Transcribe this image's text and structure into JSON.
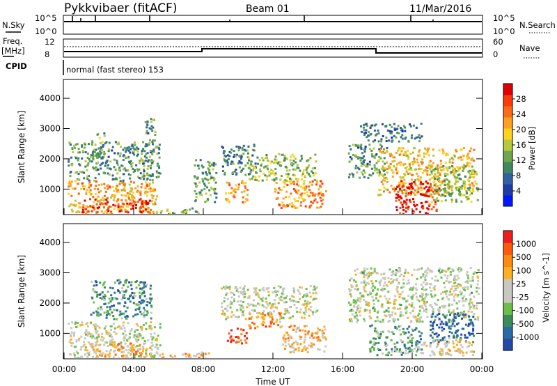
{
  "header": {
    "station": "Pykkvibaer (fitACF)",
    "beam": "Beam 01",
    "date": "11/Mar/2016"
  },
  "top_panels": {
    "nsky_label": "N.Sky",
    "nsky_ticks": [
      "10^5",
      "10^0"
    ],
    "nsearch_ticks": [
      "10^5",
      "10^0"
    ],
    "nsearch_label": "N.Search",
    "freq_label_1": "Freq.",
    "freq_label_2": "[MHz]",
    "freq_ticks": [
      "12",
      "8"
    ],
    "nave_ticks": [
      "60",
      "0"
    ],
    "nave_label": "Nave",
    "cpid_label": "CPID",
    "cpid_text": "normal (fast stereo) 153"
  },
  "chart_data": [
    {
      "type": "heatmap",
      "name": "power",
      "ylabel": "Slant Range [km]",
      "y_ticks": [
        1000,
        2000,
        3000,
        4000
      ],
      "ylim": [
        180,
        4600
      ],
      "x_ticks": [
        "00:00",
        "04:00",
        "08:00",
        "12:00",
        "16:00",
        "20:00",
        "00:00"
      ],
      "xlim_hours": [
        0,
        24
      ],
      "colorbar_label": "Power [dB]",
      "colorbar_ticks": [
        "4",
        "8",
        "12",
        "16",
        "20",
        "24",
        "28"
      ],
      "colorbar_colors": [
        "#0018ff",
        "#1e3ca8",
        "#2f62a4",
        "#3f8a5c",
        "#6ea84b",
        "#b6c93c",
        "#ffd21e",
        "#ffa11e",
        "#ff6a14",
        "#ff3a0a",
        "#e00000"
      ],
      "regions": [
        {
          "t0": 0.2,
          "t1": 5.3,
          "r0": 200,
          "r1": 1300,
          "level": 0.65
        },
        {
          "t0": 1.0,
          "t1": 5.0,
          "r0": 250,
          "r1": 700,
          "level": 0.9
        },
        {
          "t0": 0.2,
          "t1": 5.5,
          "r0": 1300,
          "r1": 2600,
          "level": 0.35
        },
        {
          "t0": 1.5,
          "t1": 2.3,
          "r0": 2000,
          "r1": 2900,
          "level": 0.4
        },
        {
          "t0": 4.6,
          "t1": 5.2,
          "r0": 2500,
          "r1": 3400,
          "level": 0.3
        },
        {
          "t0": 5.5,
          "t1": 8.0,
          "r0": 200,
          "r1": 400,
          "level": 0.45
        },
        {
          "t0": 7.4,
          "t1": 8.7,
          "r0": 600,
          "r1": 2000,
          "level": 0.35
        },
        {
          "t0": 9.0,
          "t1": 11.0,
          "r0": 1500,
          "r1": 2500,
          "level": 0.3
        },
        {
          "t0": 10.5,
          "t1": 14.5,
          "r0": 1300,
          "r1": 2200,
          "level": 0.45
        },
        {
          "t0": 9.2,
          "t1": 10.5,
          "r0": 600,
          "r1": 1300,
          "level": 0.7
        },
        {
          "t0": 12.0,
          "t1": 15.0,
          "r0": 400,
          "r1": 1300,
          "level": 0.7
        },
        {
          "t0": 16.3,
          "t1": 18.5,
          "r0": 1400,
          "r1": 2500,
          "level": 0.35
        },
        {
          "t0": 17.0,
          "t1": 20.5,
          "r0": 2600,
          "r1": 3200,
          "level": 0.25
        },
        {
          "t0": 18.0,
          "t1": 23.5,
          "r0": 800,
          "r1": 2400,
          "level": 0.6
        },
        {
          "t0": 19.0,
          "t1": 21.5,
          "r0": 200,
          "r1": 1300,
          "level": 0.95
        },
        {
          "t0": 21.0,
          "t1": 23.8,
          "r0": 600,
          "r1": 1800,
          "level": 0.45
        }
      ]
    },
    {
      "type": "heatmap",
      "name": "velocity",
      "ylabel": "Slant Range [km]",
      "y_ticks": [
        1000,
        2000,
        3000,
        4000
      ],
      "ylim": [
        180,
        4600
      ],
      "x_ticks": [
        "00:00",
        "04:00",
        "08:00",
        "12:00",
        "16:00",
        "20:00",
        "00:00"
      ],
      "xlim_hours": [
        0,
        24
      ],
      "xlabel": "Time UT",
      "colorbar_label": "Velocity [m s^-1]",
      "colorbar_ticks": [
        "1000",
        "500",
        "100",
        "25",
        "-25",
        "-100",
        "-500",
        "-1000"
      ],
      "colorbar_colors": [
        "#2349a8",
        "#2a6aa8",
        "#3b8c5a",
        "#6cc04a",
        "#c8c8c0",
        "#c8c8c0",
        "#ffb020",
        "#ff8a10",
        "#ff5a0a",
        "#ee1c1c"
      ],
      "regions": [
        {
          "t0": 0.2,
          "t1": 5.5,
          "r0": 200,
          "r1": 1400,
          "level": 0.5
        },
        {
          "t0": 1.5,
          "t1": 5.0,
          "r0": 250,
          "r1": 700,
          "level": 0.7
        },
        {
          "t0": 1.5,
          "t1": 5.0,
          "r0": 1500,
          "r1": 2800,
          "level": 0.25
        },
        {
          "t0": 5.5,
          "t1": 8.5,
          "r0": 200,
          "r1": 400,
          "level": 0.65
        },
        {
          "t0": 9.0,
          "t1": 14.5,
          "r0": 1500,
          "r1": 2600,
          "level": 0.48
        },
        {
          "t0": 9.3,
          "t1": 10.5,
          "r0": 700,
          "r1": 1200,
          "level": 0.9
        },
        {
          "t0": 10.5,
          "t1": 12.5,
          "r0": 1200,
          "r1": 1700,
          "level": 0.75
        },
        {
          "t0": 12.5,
          "t1": 15.0,
          "r0": 400,
          "r1": 1300,
          "level": 0.65
        },
        {
          "t0": 16.3,
          "t1": 23.8,
          "r0": 1400,
          "r1": 3200,
          "level": 0.47
        },
        {
          "t0": 17.5,
          "t1": 20.5,
          "r0": 300,
          "r1": 1300,
          "level": 0.3
        },
        {
          "t0": 21.0,
          "t1": 23.5,
          "r0": 700,
          "r1": 1700,
          "level": 0.1
        },
        {
          "t0": 20.5,
          "t1": 23.5,
          "r0": 300,
          "r1": 900,
          "level": 0.55
        }
      ]
    }
  ]
}
